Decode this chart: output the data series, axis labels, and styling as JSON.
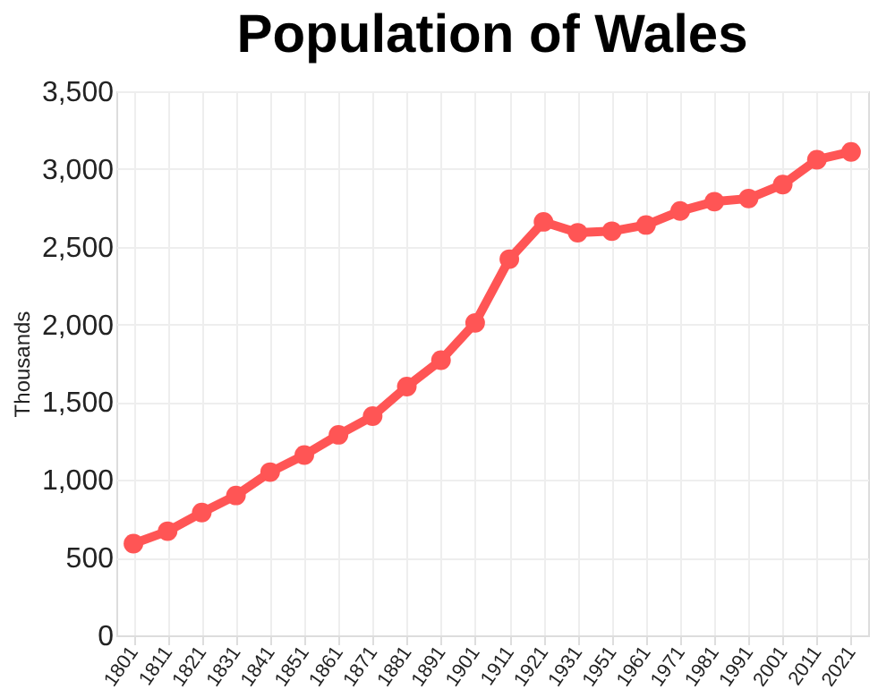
{
  "chart_data": {
    "type": "line",
    "title": "Population of Wales",
    "ylabel": "Thousands",
    "categories": [
      "1801",
      "1811",
      "1821",
      "1831",
      "1841",
      "1851",
      "1861",
      "1871",
      "1881",
      "1891",
      "1901",
      "1911",
      "1921",
      "1931",
      "1951",
      "1961",
      "1971",
      "1981",
      "1991",
      "2001",
      "2011",
      "2021"
    ],
    "series": [
      {
        "color": "#ff5555",
        "values": [
          590,
          670,
          790,
          900,
          1050,
          1160,
          1290,
          1410,
          1600,
          1770,
          2010,
          2420,
          2660,
          2590,
          2600,
          2640,
          2730,
          2790,
          2810,
          2900,
          3060,
          3110
        ]
      }
    ],
    "ylim": [
      0,
      3500
    ],
    "yticks": [
      {
        "value": 0,
        "label": "0"
      },
      {
        "value": 500,
        "label": "500"
      },
      {
        "value": 1000,
        "label": "1,000"
      },
      {
        "value": 1500,
        "label": "1,500"
      },
      {
        "value": 2000,
        "label": "2,000"
      },
      {
        "value": 2500,
        "label": "2,500"
      },
      {
        "value": 3000,
        "label": "3,000"
      },
      {
        "value": 3500,
        "label": "3,500"
      }
    ],
    "grid": true,
    "marker": "circle",
    "line_style": "solid"
  }
}
